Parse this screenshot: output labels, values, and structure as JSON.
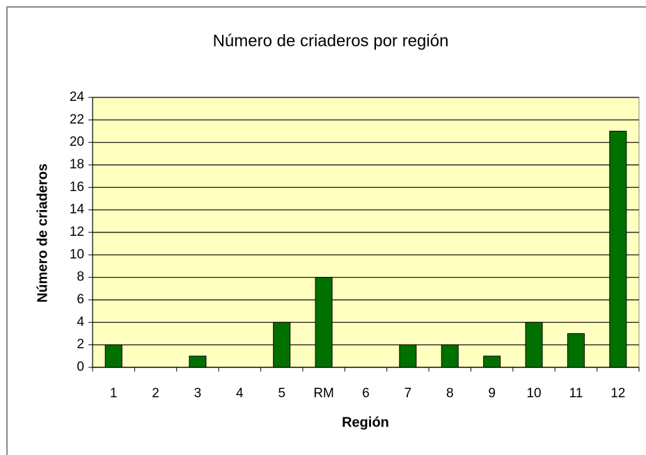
{
  "chart_data": {
    "type": "bar",
    "title": "Número de criaderos por región",
    "x_label": "Región",
    "y_label": "Número de criaderos",
    "categories": [
      "1",
      "2",
      "3",
      "4",
      "5",
      "RM",
      "6",
      "7",
      "8",
      "9",
      "10",
      "11",
      "12"
    ],
    "values": [
      2,
      0,
      1,
      0,
      4,
      8,
      0,
      2,
      2,
      1,
      4,
      3,
      21
    ],
    "color": "#007000",
    "plot_background": "#ffffc0",
    "ylim": [
      0,
      24
    ],
    "yticks": [
      0,
      2,
      4,
      6,
      8,
      10,
      12,
      14,
      16,
      18,
      20,
      22,
      24
    ],
    "grid": true
  }
}
